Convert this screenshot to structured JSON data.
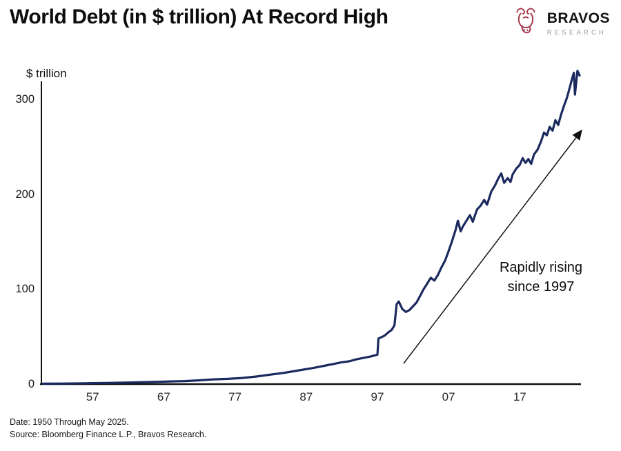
{
  "header": {
    "title": "World Debt (in $ trillion) At Record High",
    "logo": {
      "name": "BRAVOS",
      "subtitle": "RESEARCH",
      "icon": "bull-icon",
      "icon_color": "#a83a4d"
    }
  },
  "chart_data": {
    "type": "line",
    "title": "World Debt (in $ trillion) At Record High",
    "xlabel": "",
    "ylabel": "$ trillion",
    "xlim": [
      1950,
      2025.4
    ],
    "ylim": [
      0,
      300
    ],
    "grid": false,
    "legend": "none",
    "line_color": "#1b2a5e",
    "axis_color": "#111111",
    "y_ticks": [
      0,
      100,
      200,
      300
    ],
    "x_ticks": [
      {
        "label": "57",
        "year": 1957
      },
      {
        "label": "67",
        "year": 1967
      },
      {
        "label": "77",
        "year": 1977
      },
      {
        "label": "87",
        "year": 1987
      },
      {
        "label": "97",
        "year": 1997
      },
      {
        "label": "07",
        "year": 2007
      },
      {
        "label": "17",
        "year": 2017
      }
    ],
    "annotation": {
      "line1": "Rapidly rising",
      "line2": "since 1997",
      "arrow": "diagonal-up-right"
    },
    "series": [
      {
        "name": "World debt ($ trillion)",
        "points": [
          [
            1950,
            0.4
          ],
          [
            1953,
            0.6
          ],
          [
            1956,
            0.9
          ],
          [
            1959,
            1.2
          ],
          [
            1962,
            1.7
          ],
          [
            1965,
            2.2
          ],
          [
            1968,
            2.8
          ],
          [
            1970,
            3.2
          ],
          [
            1972,
            4
          ],
          [
            1974,
            5
          ],
          [
            1976,
            5.5
          ],
          [
            1978,
            6.5
          ],
          [
            1980,
            8
          ],
          [
            1982,
            10
          ],
          [
            1984,
            12
          ],
          [
            1986,
            14.5
          ],
          [
            1988,
            17
          ],
          [
            1990,
            20
          ],
          [
            1991,
            21.5
          ],
          [
            1992,
            23
          ],
          [
            1993,
            24
          ],
          [
            1994,
            26
          ],
          [
            1995,
            27.5
          ],
          [
            1996,
            29
          ],
          [
            1997,
            31
          ],
          [
            1997.15,
            48
          ],
          [
            1998,
            51
          ],
          [
            1998.6,
            55
          ],
          [
            1999,
            57
          ],
          [
            1999.4,
            62
          ],
          [
            1999.7,
            84
          ],
          [
            2000,
            87
          ],
          [
            2000.5,
            79
          ],
          [
            2001,
            76
          ],
          [
            2001.5,
            78
          ],
          [
            2002,
            82
          ],
          [
            2002.5,
            86
          ],
          [
            2003,
            93
          ],
          [
            2003.5,
            100
          ],
          [
            2004,
            106
          ],
          [
            2004.5,
            112
          ],
          [
            2005,
            109
          ],
          [
            2005.5,
            115
          ],
          [
            2006,
            123
          ],
          [
            2006.5,
            130
          ],
          [
            2007,
            140
          ],
          [
            2007.5,
            151
          ],
          [
            2008,
            163
          ],
          [
            2008.3,
            172
          ],
          [
            2008.7,
            161
          ],
          [
            2009,
            166
          ],
          [
            2009.5,
            172
          ],
          [
            2010,
            178
          ],
          [
            2010.4,
            171
          ],
          [
            2011,
            184
          ],
          [
            2011.5,
            188
          ],
          [
            2012,
            194
          ],
          [
            2012.4,
            189
          ],
          [
            2013,
            203
          ],
          [
            2013.5,
            209
          ],
          [
            2014,
            217
          ],
          [
            2014.4,
            222
          ],
          [
            2014.8,
            212
          ],
          [
            2015.3,
            217
          ],
          [
            2015.7,
            213
          ],
          [
            2016,
            221
          ],
          [
            2016.5,
            227
          ],
          [
            2017,
            231
          ],
          [
            2017.4,
            238
          ],
          [
            2017.8,
            233
          ],
          [
            2018.2,
            237
          ],
          [
            2018.6,
            232
          ],
          [
            2019,
            242
          ],
          [
            2019.5,
            247
          ],
          [
            2020,
            256
          ],
          [
            2020.4,
            265
          ],
          [
            2020.8,
            262
          ],
          [
            2021.2,
            271
          ],
          [
            2021.6,
            267
          ],
          [
            2022,
            278
          ],
          [
            2022.4,
            273
          ],
          [
            2022.8,
            284
          ],
          [
            2023.2,
            293
          ],
          [
            2023.6,
            301
          ],
          [
            2024,
            312
          ],
          [
            2024.35,
            322
          ],
          [
            2024.6,
            328
          ],
          [
            2024.75,
            305
          ],
          [
            2024.9,
            316
          ],
          [
            2025.1,
            330
          ],
          [
            2025.4,
            325
          ]
        ]
      }
    ]
  },
  "footer": {
    "date_line": "Date: 1950 Through May 2025.",
    "source_line": "Source: Bloomberg Finance L.P., Bravos Research."
  }
}
